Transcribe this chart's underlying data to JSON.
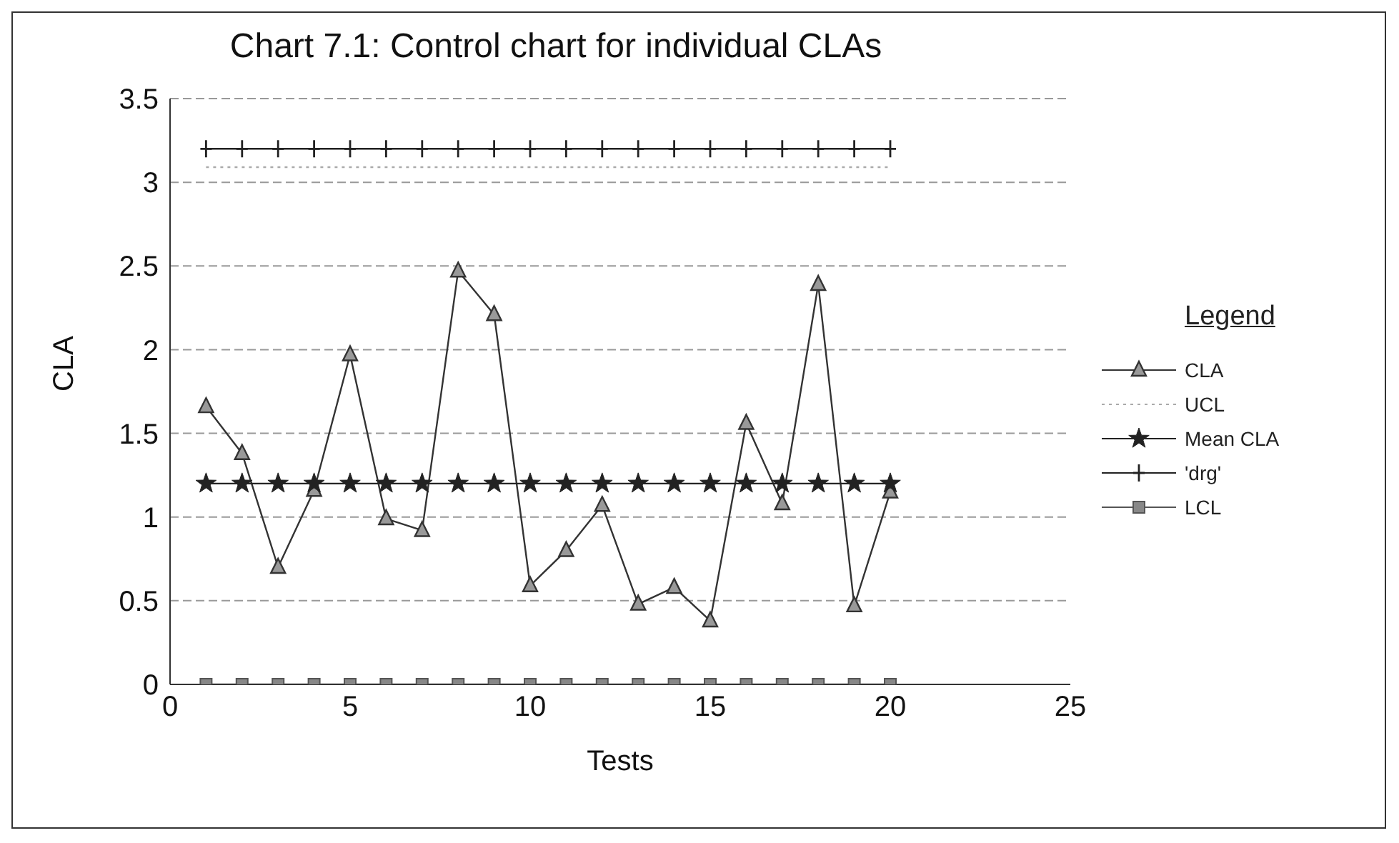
{
  "chart_data": {
    "type": "line",
    "title": "Chart 7.1: Control chart for individual CLAs",
    "xlabel": "Tests",
    "ylabel": "CLA",
    "legend_title": "Legend",
    "x": [
      1,
      2,
      3,
      4,
      5,
      6,
      7,
      8,
      9,
      10,
      11,
      12,
      13,
      14,
      15,
      16,
      17,
      18,
      19,
      20
    ],
    "series": [
      {
        "name": "CLA",
        "color": "#333333",
        "marker": "triangle",
        "line_style": "solid",
        "values": [
          1.66,
          1.38,
          0.7,
          1.16,
          1.97,
          0.99,
          0.92,
          2.47,
          2.21,
          0.59,
          0.8,
          1.07,
          0.48,
          0.58,
          0.38,
          1.56,
          1.08,
          2.39,
          0.47,
          1.15
        ]
      },
      {
        "name": "UCL",
        "color": "#aaaaaa",
        "marker": "none",
        "line_style": "dotted",
        "values": [
          3.09,
          3.09,
          3.09,
          3.09,
          3.09,
          3.09,
          3.09,
          3.09,
          3.09,
          3.09,
          3.09,
          3.09,
          3.09,
          3.09,
          3.09,
          3.09,
          3.09,
          3.09,
          3.09,
          3.09
        ]
      },
      {
        "name": "Mean CLA",
        "color": "#222222",
        "marker": "star",
        "line_style": "solid",
        "values": [
          1.2,
          1.2,
          1.2,
          1.2,
          1.2,
          1.2,
          1.2,
          1.2,
          1.2,
          1.2,
          1.2,
          1.2,
          1.2,
          1.2,
          1.2,
          1.2,
          1.2,
          1.2,
          1.2,
          1.2
        ]
      },
      {
        "name": "'drg'",
        "color": "#222222",
        "marker": "cross",
        "line_style": "solid",
        "values": [
          3.2,
          3.2,
          3.2,
          3.2,
          3.2,
          3.2,
          3.2,
          3.2,
          3.2,
          3.2,
          3.2,
          3.2,
          3.2,
          3.2,
          3.2,
          3.2,
          3.2,
          3.2,
          3.2,
          3.2
        ]
      },
      {
        "name": "LCL",
        "color": "#555555",
        "marker": "square",
        "line_style": "solid",
        "values": [
          0,
          0,
          0,
          0,
          0,
          0,
          0,
          0,
          0,
          0,
          0,
          0,
          0,
          0,
          0,
          0,
          0,
          0,
          0,
          0
        ]
      }
    ],
    "xlim": [
      0,
      25
    ],
    "xticks": [
      0,
      5,
      10,
      15,
      20,
      25
    ],
    "ylim": [
      0,
      3.5
    ],
    "yticks": [
      0,
      0.5,
      1,
      1.5,
      2,
      2.5,
      3,
      3.5
    ],
    "grid": "y",
    "legend": "right"
  }
}
